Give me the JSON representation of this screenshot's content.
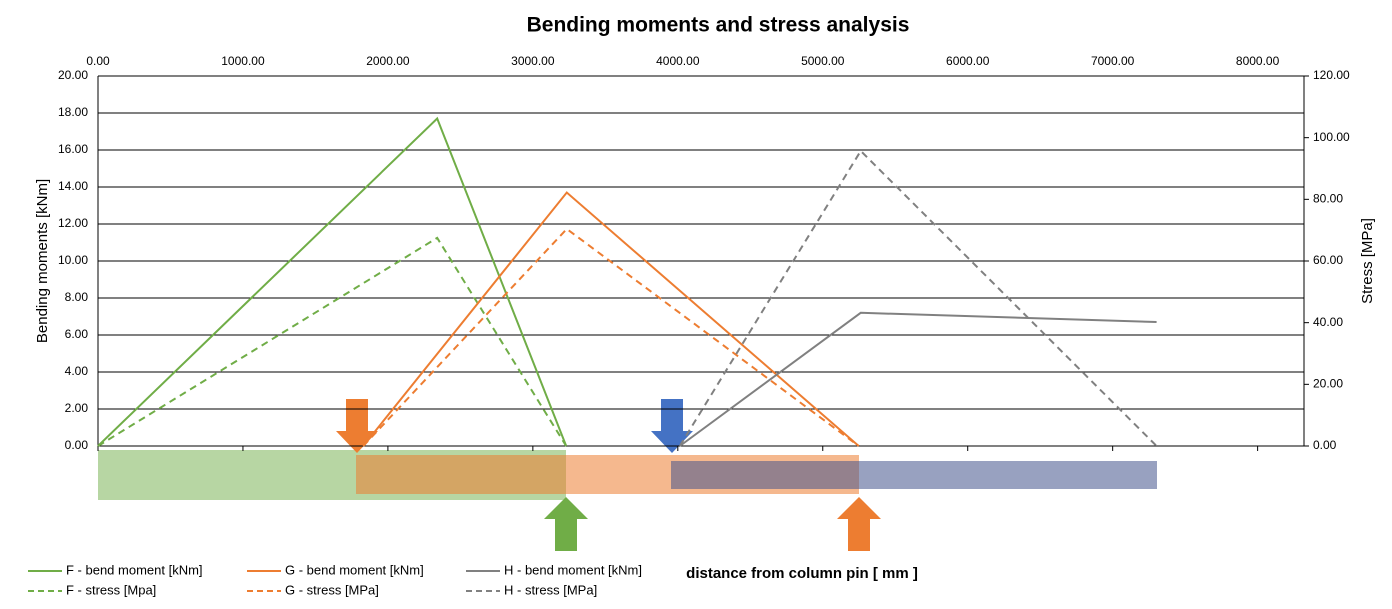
{
  "chart_data": {
    "type": "line",
    "title": "Bending moments and stress analysis",
    "x_label": "distance from column pin [ mm ]",
    "y_label": "Bending moments [kNm]",
    "y2_label": "Stress [MPa]",
    "xlim": [
      0,
      8320
    ],
    "xticks": [
      {
        "value": 0,
        "label": "0.00"
      },
      {
        "value": 1000,
        "label": "1000.00"
      },
      {
        "value": 2000,
        "label": "2000.00"
      },
      {
        "value": 3000,
        "label": "3000.00"
      },
      {
        "value": 4000,
        "label": "4000.00"
      },
      {
        "value": 5000,
        "label": "5000.00"
      },
      {
        "value": 6000,
        "label": "6000.00"
      },
      {
        "value": 7000,
        "label": "7000.00"
      },
      {
        "value": 8000,
        "label": "8000.00"
      }
    ],
    "ylim": [
      0,
      20
    ],
    "yticks": [
      {
        "value": 0,
        "label": "0.00"
      },
      {
        "value": 2,
        "label": "2.00"
      },
      {
        "value": 4,
        "label": "4.00"
      },
      {
        "value": 6,
        "label": "6.00"
      },
      {
        "value": 8,
        "label": "8.00"
      },
      {
        "value": 10,
        "label": "10.00"
      },
      {
        "value": 12,
        "label": "12.00"
      },
      {
        "value": 14,
        "label": "14.00"
      },
      {
        "value": 16,
        "label": "16.00"
      },
      {
        "value": 18,
        "label": "18.00"
      },
      {
        "value": 20,
        "label": "20.00"
      }
    ],
    "y2lim": [
      0,
      120
    ],
    "y2ticks": [
      {
        "value": 0,
        "label": "0.00"
      },
      {
        "value": 20,
        "label": "20.00"
      },
      {
        "value": 40,
        "label": "40.00"
      },
      {
        "value": 60,
        "label": "60.00"
      },
      {
        "value": 80,
        "label": "80.00"
      },
      {
        "value": 100,
        "label": "100.00"
      },
      {
        "value": 120,
        "label": "120.00"
      }
    ],
    "grid": true,
    "series": [
      {
        "name": "F - bend moment [kNm]",
        "color": "#70ad47",
        "dashed": false,
        "x": [
          0,
          2340,
          3230
        ],
        "values": [
          0,
          17.7,
          0
        ]
      },
      {
        "name": "F - stress [Mpa]",
        "color": "#70ad47",
        "dashed": true,
        "axis": "y2",
        "x": [
          0,
          2340,
          3230
        ],
        "values": [
          0,
          67.5,
          0
        ]
      },
      {
        "name": "G - bend moment [kNm]",
        "color": "#ed7d31",
        "dashed": false,
        "x": [
          1830,
          3234,
          5248
        ],
        "values": [
          0,
          13.7,
          0
        ]
      },
      {
        "name": "G - stress [MPa]",
        "color": "#ed7d31",
        "dashed": true,
        "axis": "y2",
        "x": [
          1830,
          3234,
          5248
        ],
        "values": [
          0,
          70.4,
          0
        ]
      },
      {
        "name": "H - bend moment [kNm]",
        "color": "#808080",
        "dashed": false,
        "x": [
          4014,
          5262,
          7303
        ],
        "values": [
          0,
          7.2,
          6.7
        ]
      },
      {
        "name": "H - stress [MPa]",
        "color": "#808080",
        "dashed": true,
        "axis": "y2",
        "x": [
          4014,
          5262,
          7303
        ],
        "values": [
          0,
          95.7,
          0
        ]
      }
    ]
  }
}
